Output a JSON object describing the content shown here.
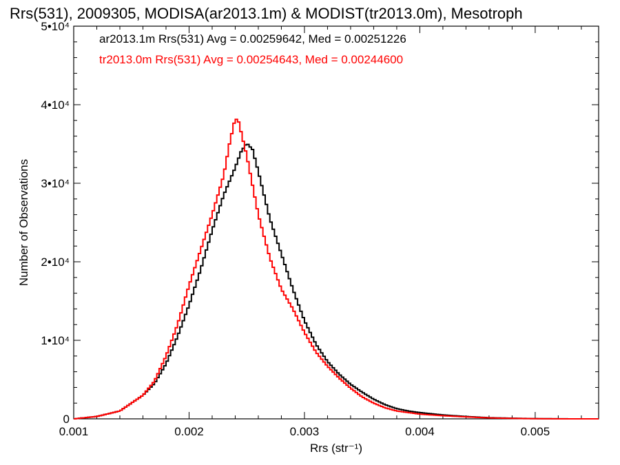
{
  "chart_data": {
    "type": "line",
    "title": "Rrs(531), 2009305, MODISA(ar2013.1m) & MODIST(tr2013.0m), Mesotroph",
    "xlabel": "Rrs (str⁻¹)",
    "ylabel": "Number of Observations",
    "xlim": [
      0.001,
      0.00555
    ],
    "ylim": [
      0,
      50000
    ],
    "x_ticks": [
      0.001,
      0.002,
      0.003,
      0.004,
      0.005
    ],
    "x_tick_labels": [
      "0.001",
      "0.002",
      "0.003",
      "0.004",
      "0.005"
    ],
    "y_ticks": [
      0,
      10000,
      20000,
      30000,
      40000,
      50000
    ],
    "y_tick_labels": [
      "0",
      "1•10⁴",
      "2•10⁴",
      "3•10⁴",
      "4•10⁴",
      "5•10⁴"
    ],
    "grid": false,
    "legend_position": "top-left",
    "series": [
      {
        "name": "ar2013.1m",
        "color": "#000000",
        "label": "ar2013.1m Rrs(531) Avg = 0.00259642, Med = 0.00251226",
        "points": [
          [
            0.001,
            0
          ],
          [
            0.0012,
            300
          ],
          [
            0.0014,
            1000
          ],
          [
            0.0016,
            3000
          ],
          [
            0.0017,
            4500
          ],
          [
            0.0018,
            7000
          ],
          [
            0.0019,
            10500
          ],
          [
            0.002,
            14500
          ],
          [
            0.0021,
            19000
          ],
          [
            0.0022,
            24000
          ],
          [
            0.0023,
            28500
          ],
          [
            0.0024,
            32000
          ],
          [
            0.00245,
            34000
          ],
          [
            0.0025,
            35100
          ],
          [
            0.00255,
            34300
          ],
          [
            0.0026,
            31500
          ],
          [
            0.0027,
            25500
          ],
          [
            0.0028,
            21000
          ],
          [
            0.0029,
            16500
          ],
          [
            0.003,
            12500
          ],
          [
            0.0031,
            9500
          ],
          [
            0.0032,
            7300
          ],
          [
            0.0033,
            5700
          ],
          [
            0.0034,
            4400
          ],
          [
            0.0035,
            3400
          ],
          [
            0.0036,
            2500
          ],
          [
            0.0037,
            1800
          ],
          [
            0.0038,
            1300
          ],
          [
            0.0039,
            1000
          ],
          [
            0.004,
            800
          ],
          [
            0.0042,
            500
          ],
          [
            0.0044,
            300
          ],
          [
            0.0046,
            150
          ],
          [
            0.0048,
            80
          ],
          [
            0.005,
            30
          ],
          [
            0.0052,
            10
          ],
          [
            0.0054,
            0
          ],
          [
            0.00555,
            0
          ]
        ]
      },
      {
        "name": "tr2013.0m",
        "color": "#ff0000",
        "label": "tr2013.0m Rrs(531) Avg = 0.00254643, Med = 0.00244600",
        "points": [
          [
            0.001,
            0
          ],
          [
            0.0012,
            300
          ],
          [
            0.0014,
            1000
          ],
          [
            0.0016,
            3000
          ],
          [
            0.0017,
            4800
          ],
          [
            0.0018,
            8000
          ],
          [
            0.0019,
            12000
          ],
          [
            0.002,
            17000
          ],
          [
            0.0021,
            21500
          ],
          [
            0.0022,
            26000
          ],
          [
            0.0023,
            31000
          ],
          [
            0.00235,
            35000
          ],
          [
            0.0024,
            38300
          ],
          [
            0.00243,
            37800
          ],
          [
            0.0025,
            33500
          ],
          [
            0.0026,
            26000
          ],
          [
            0.0027,
            20500
          ],
          [
            0.0028,
            16500
          ],
          [
            0.0029,
            14000
          ],
          [
            0.003,
            11000
          ],
          [
            0.0031,
            8500
          ],
          [
            0.0032,
            6700
          ],
          [
            0.0033,
            5200
          ],
          [
            0.0034,
            3900
          ],
          [
            0.0035,
            2800
          ],
          [
            0.0036,
            2000
          ],
          [
            0.0037,
            1400
          ],
          [
            0.0038,
            1000
          ],
          [
            0.0039,
            800
          ],
          [
            0.004,
            600
          ],
          [
            0.0042,
            400
          ],
          [
            0.0044,
            250
          ],
          [
            0.0046,
            120
          ],
          [
            0.0048,
            60
          ],
          [
            0.005,
            20
          ],
          [
            0.0052,
            5
          ],
          [
            0.0054,
            0
          ],
          [
            0.00555,
            0
          ]
        ]
      }
    ]
  }
}
